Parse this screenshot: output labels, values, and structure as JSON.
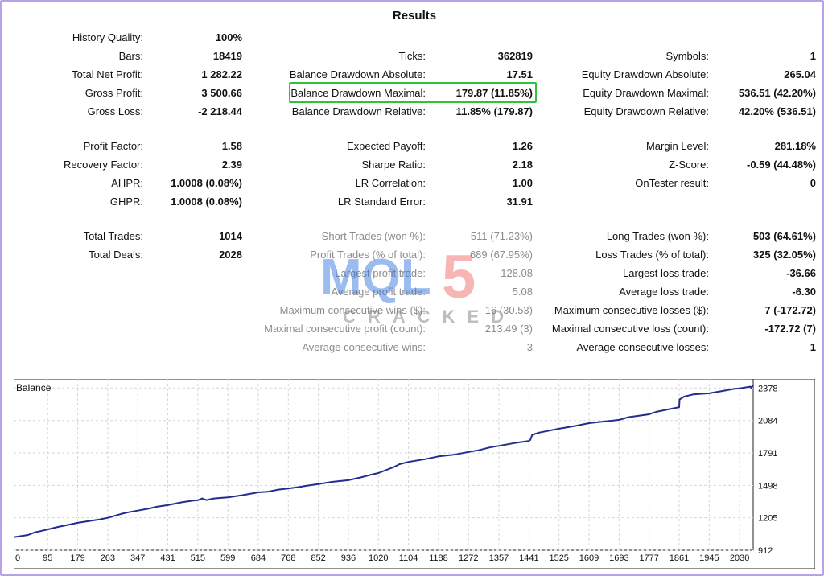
{
  "title": "Results",
  "stats": {
    "history_quality": {
      "label": "History Quality:",
      "value": "100%"
    },
    "bars": {
      "label": "Bars:",
      "value": "18419"
    },
    "ticks": {
      "label": "Ticks:",
      "value": "362819"
    },
    "symbols": {
      "label": "Symbols:",
      "value": "1"
    },
    "total_net_profit": {
      "label": "Total Net Profit:",
      "value": "1 282.22"
    },
    "balance_drawdown_absolute": {
      "label": "Balance Drawdown Absolute:",
      "value": "17.51"
    },
    "equity_drawdown_absolute": {
      "label": "Equity Drawdown Absolute:",
      "value": "265.04"
    },
    "gross_profit": {
      "label": "Gross Profit:",
      "value": "3 500.66"
    },
    "balance_drawdown_maximal": {
      "label": "Balance Drawdown Maximal:",
      "value": "179.87 (11.85%)"
    },
    "equity_drawdown_maximal": {
      "label": "Equity Drawdown Maximal:",
      "value": "536.51 (42.20%)"
    },
    "gross_loss": {
      "label": "Gross Loss:",
      "value": "-2 218.44"
    },
    "balance_drawdown_relative": {
      "label": "Balance Drawdown Relative:",
      "value": "11.85% (179.87)"
    },
    "equity_drawdown_relative": {
      "label": "Equity Drawdown Relative:",
      "value": "42.20% (536.51)"
    },
    "profit_factor": {
      "label": "Profit Factor:",
      "value": "1.58"
    },
    "expected_payoff": {
      "label": "Expected Payoff:",
      "value": "1.26"
    },
    "margin_level": {
      "label": "Margin Level:",
      "value": "281.18%"
    },
    "recovery_factor": {
      "label": "Recovery Factor:",
      "value": "2.39"
    },
    "sharpe_ratio": {
      "label": "Sharpe Ratio:",
      "value": "2.18"
    },
    "z_score": {
      "label": "Z-Score:",
      "value": "-0.59 (44.48%)"
    },
    "ahpr": {
      "label": "AHPR:",
      "value": "1.0008 (0.08%)"
    },
    "lr_correlation": {
      "label": "LR Correlation:",
      "value": "1.00"
    },
    "ontester_result": {
      "label": "OnTester result:",
      "value": "0"
    },
    "ghpr": {
      "label": "GHPR:",
      "value": "1.0008 (0.08%)"
    },
    "lr_standard_error": {
      "label": "LR Standard Error:",
      "value": "31.91"
    },
    "total_trades": {
      "label": "Total Trades:",
      "value": "1014"
    },
    "short_trades": {
      "label": "Short Trades (won %):",
      "value": "511 (71.23%)"
    },
    "long_trades": {
      "label": "Long Trades (won %):",
      "value": "503 (64.61%)"
    },
    "total_deals": {
      "label": "Total Deals:",
      "value": "2028"
    },
    "profit_trades": {
      "label": "Profit Trades (% of total):",
      "value": "689 (67.95%)"
    },
    "loss_trades": {
      "label": "Loss Trades (% of total):",
      "value": "325 (32.05%)"
    },
    "largest_profit_trade": {
      "label": "Largest profit trade:",
      "value": "128.08"
    },
    "largest_loss_trade": {
      "label": "Largest loss trade:",
      "value": "-36.66"
    },
    "average_profit_trade": {
      "label": "Average profit trade:",
      "value": "5.08"
    },
    "average_loss_trade": {
      "label": "Average loss trade:",
      "value": "-6.30"
    },
    "max_consecutive_wins": {
      "label": "Maximum consecutive wins ($):",
      "value": "16 (30.53)"
    },
    "max_consecutive_losses": {
      "label": "Maximum consecutive losses ($):",
      "value": "7 (-172.72)"
    },
    "maximal_consecutive_profit": {
      "label": "Maximal consecutive profit (count):",
      "value": "213.49 (3)"
    },
    "maximal_consecutive_loss": {
      "label": "Maximal consecutive loss (count):",
      "value": "-172.72 (7)"
    },
    "average_consecutive_wins": {
      "label": "Average consecutive wins:",
      "value": "3"
    },
    "average_consecutive_losses": {
      "label": "Average consecutive losses:",
      "value": "1"
    }
  },
  "watermark": {
    "mql": "MQL",
    "five": "5",
    "cracked": "CRACKED"
  },
  "chart_data": {
    "type": "line",
    "title": "Balance",
    "xlabel": "",
    "ylabel": "",
    "x_ticks": [
      0,
      95,
      179,
      263,
      347,
      431,
      515,
      599,
      684,
      768,
      852,
      936,
      1020,
      1104,
      1188,
      1272,
      1357,
      1441,
      1525,
      1609,
      1693,
      1777,
      1861,
      1945,
      2030
    ],
    "y_ticks": [
      912,
      1205,
      1498,
      1791,
      2084,
      2378
    ],
    "xlim": [
      0,
      2068
    ],
    "ylim": [
      912,
      2460
    ],
    "grid": true,
    "series": [
      {
        "x": [
          0,
          40,
          60,
          75,
          95,
          120,
          150,
          179,
          210,
          240,
          263,
          300,
          320,
          347,
          380,
          400,
          431,
          470,
          500,
          515,
          528,
          530,
          540,
          545,
          560,
          580,
          599,
          640,
          684,
          710,
          740,
          768,
          800,
          820,
          852,
          890,
          936,
          970,
          1000,
          1020,
          1060,
          1080,
          1104,
          1150,
          1188,
          1230,
          1272,
          1300,
          1330,
          1357,
          1400,
          1441,
          1445,
          1450,
          1470,
          1525,
          1570,
          1609,
          1650,
          1693,
          1720,
          1777,
          1785,
          1800,
          1861,
          1862,
          1875,
          1900,
          1945,
          1990,
          2015,
          2030,
          2060,
          2062,
          2068
        ],
        "values": [
          1030,
          1050,
          1075,
          1085,
          1100,
          1120,
          1140,
          1160,
          1175,
          1190,
          1205,
          1240,
          1255,
          1270,
          1290,
          1305,
          1320,
          1345,
          1360,
          1365,
          1380,
          1375,
          1365,
          1370,
          1380,
          1385,
          1390,
          1410,
          1435,
          1440,
          1460,
          1470,
          1485,
          1495,
          1510,
          1530,
          1545,
          1570,
          1595,
          1610,
          1660,
          1690,
          1710,
          1735,
          1760,
          1775,
          1800,
          1815,
          1840,
          1855,
          1880,
          1900,
          1910,
          1955,
          1975,
          2010,
          2035,
          2060,
          2075,
          2090,
          2115,
          2140,
          2150,
          2165,
          2205,
          2275,
          2300,
          2320,
          2330,
          2355,
          2370,
          2375,
          2390,
          2380,
          2405
        ]
      }
    ]
  }
}
